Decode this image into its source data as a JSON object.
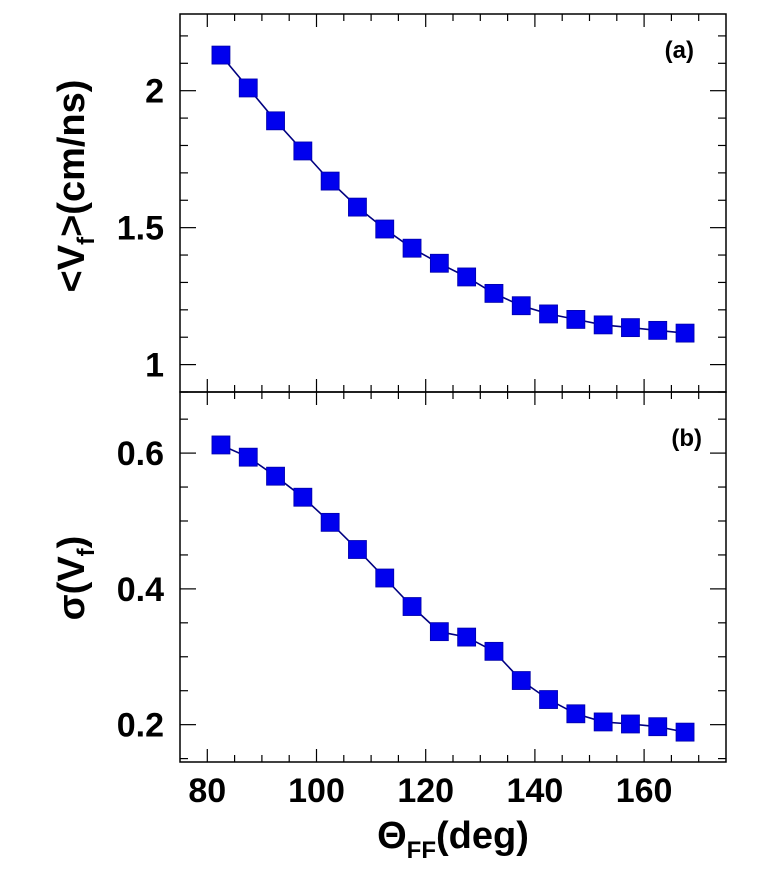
{
  "chart_data": [
    {
      "panel": "(a)",
      "type": "line",
      "ylabel": {
        "prefix": "<V",
        "sub": "f",
        "suffix": ">(cm/ns)"
      },
      "ylim": [
        0.9,
        2.28
      ],
      "yticks": [
        1,
        1.5,
        2
      ],
      "ytick_labels": [
        "1",
        "1.5",
        "2"
      ],
      "marker": "square",
      "color": "#0000ee",
      "series": [
        {
          "x": [
            82.5,
            87.5,
            92.5,
            97.5,
            102.5,
            107.5,
            112.5,
            117.5,
            122.5,
            127.5,
            132.5,
            137.5,
            142.5,
            147.5,
            152.5,
            157.5,
            162.5,
            167.5
          ],
          "values": [
            2.13,
            2.01,
            1.89,
            1.78,
            1.67,
            1.575,
            1.495,
            1.425,
            1.37,
            1.32,
            1.26,
            1.215,
            1.185,
            1.165,
            1.145,
            1.135,
            1.125,
            1.115
          ]
        }
      ]
    },
    {
      "panel": "(b)",
      "type": "line",
      "ylabel": {
        "prefix": "σ(V",
        "sub": "f",
        "suffix": ")"
      },
      "ylim": [
        0.145,
        0.69
      ],
      "yticks": [
        0.2,
        0.4,
        0.6
      ],
      "ytick_labels": [
        "0.2",
        "0.4",
        "0.6"
      ],
      "marker": "square",
      "color": "#0000ee",
      "series": [
        {
          "x": [
            82.5,
            87.5,
            92.5,
            97.5,
            102.5,
            107.5,
            112.5,
            117.5,
            122.5,
            127.5,
            132.5,
            137.5,
            142.5,
            147.5,
            152.5,
            157.5,
            162.5,
            167.5
          ],
          "values": [
            0.612,
            0.594,
            0.566,
            0.535,
            0.498,
            0.458,
            0.416,
            0.374,
            0.337,
            0.329,
            0.308,
            0.265,
            0.237,
            0.216,
            0.204,
            0.201,
            0.197,
            0.189
          ]
        }
      ]
    }
  ],
  "x_axis": {
    "xlim": [
      75,
      175
    ],
    "xticks": [
      80,
      100,
      120,
      140,
      160
    ],
    "xtick_labels": [
      "80",
      "100",
      "120",
      "140",
      "160"
    ],
    "label": {
      "prefix": "Θ",
      "sub": "FF",
      "suffix": "(deg)"
    }
  }
}
